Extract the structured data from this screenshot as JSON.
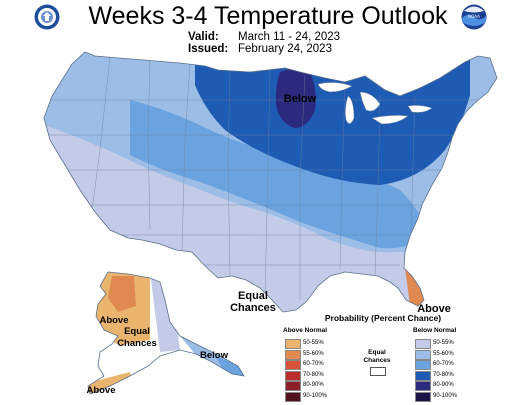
{
  "title": "Weeks 3-4 Temperature Outlook",
  "valid_label": "Valid:",
  "valid_dates": "March 11 - 24, 2023",
  "issued_label": "Issued:",
  "issued_date": "February 24, 2023",
  "logo_left_icon": "doc-seal-icon",
  "logo_right_icon": "noaa-logo-icon",
  "logo_right_text": "NOAA",
  "map_labels": {
    "below_north": "Below",
    "equal_south": "Equal Chances",
    "above_florida": "Above",
    "above_alaska_west": "Above",
    "equal_alaska": "Equal Chances",
    "below_alaska_se": "Below",
    "above_alaska_sw": "Above"
  },
  "legend": {
    "title": "Probability (Percent Chance)",
    "above_header": "Above Normal",
    "below_header": "Below Normal",
    "equal_label": "Equal Chances",
    "above": [
      {
        "range": "50-55%",
        "color": "#e8b46e"
      },
      {
        "range": "55-60%",
        "color": "#e08a52"
      },
      {
        "range": "60-70%",
        "color": "#d9533a"
      },
      {
        "range": "70-80%",
        "color": "#bc2e2e"
      },
      {
        "range": "80-90%",
        "color": "#8c1e2a"
      },
      {
        "range": "90-100%",
        "color": "#52111c"
      }
    ],
    "below": [
      {
        "range": "50-55%",
        "color": "#c3cbe8"
      },
      {
        "range": "55-60%",
        "color": "#9cbde6"
      },
      {
        "range": "60-70%",
        "color": "#6aa3e0"
      },
      {
        "range": "70-80%",
        "color": "#1e5cb3"
      },
      {
        "range": "80-90%",
        "color": "#2c2a7e"
      },
      {
        "range": "90-100%",
        "color": "#1c1447"
      }
    ]
  },
  "colors": {
    "above_50": "#e8b46e",
    "above_55": "#e08a52",
    "above_60": "#d9533a",
    "below_50": "#c3cbe8",
    "below_55": "#9cbde6",
    "below_60": "#6aa3e0",
    "below_70": "#1e5cb3",
    "below_80": "#2c2a7e",
    "equal": "#ffffff"
  }
}
